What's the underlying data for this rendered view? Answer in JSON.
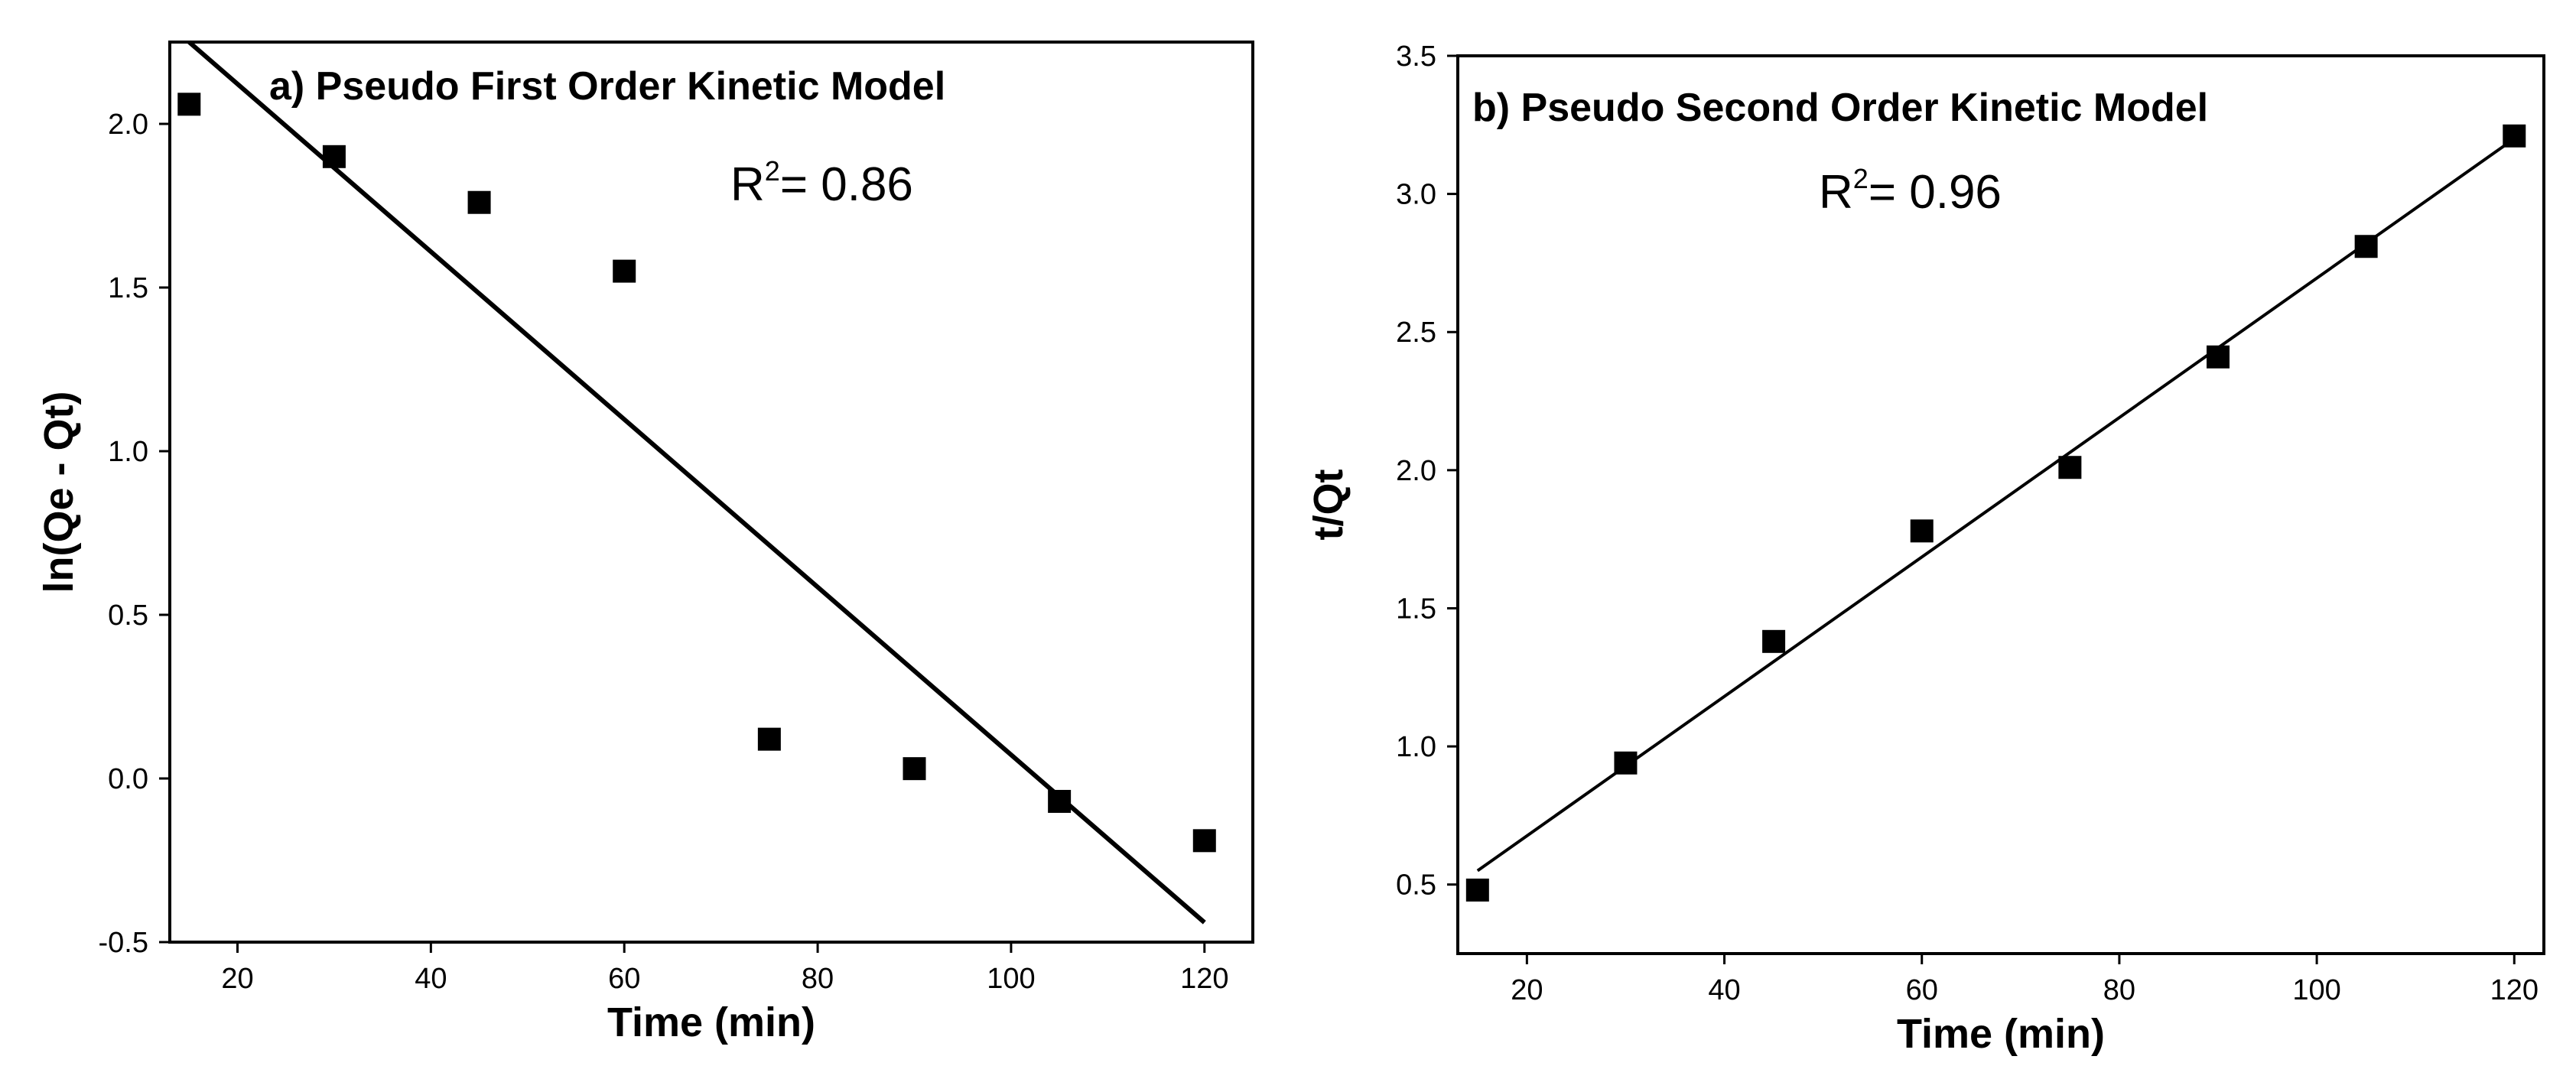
{
  "chart_data": [
    {
      "type": "scatter",
      "panel": "a",
      "title": "a) Pseudo First Order Kinetic Model",
      "annotation": {
        "r2_prefix": "R",
        "r2_sup": "2",
        "r2_text": "= 0.86"
      },
      "xlabel": "Time (min)",
      "ylabel": "ln(Qe - Qt)",
      "xlim": [
        13,
        125
      ],
      "ylim": [
        -0.5,
        2.25
      ],
      "xticks": [
        20,
        40,
        60,
        80,
        100,
        120
      ],
      "xtick_labels": [
        "20",
        "40",
        "60",
        "80",
        "100",
        "120"
      ],
      "yticks": [
        -0.5,
        0.0,
        0.5,
        1.0,
        1.5,
        2.0
      ],
      "ytick_labels": [
        "-0.5",
        "0.0",
        "0.5",
        "1.0",
        "1.5",
        "2.0"
      ],
      "series": [
        {
          "name": "data",
          "x": [
            15,
            30,
            45,
            60,
            75,
            90,
            105,
            120
          ],
          "y": [
            2.06,
            1.9,
            1.76,
            1.55,
            0.12,
            0.03,
            -0.07,
            -0.19
          ]
        }
      ],
      "fit_line": {
        "x": [
          15,
          120
        ],
        "y": [
          2.25,
          -0.44
        ]
      }
    },
    {
      "type": "scatter",
      "panel": "b",
      "title": "b) Pseudo Second Order Kinetic Model",
      "annotation": {
        "r2_prefix": "R",
        "r2_sup": "2",
        "r2_text": "= 0.96"
      },
      "xlabel": "Time (min)",
      "ylabel": "t/Qt",
      "xlim": [
        13,
        123
      ],
      "ylim": [
        0.25,
        3.5
      ],
      "xticks": [
        20,
        40,
        60,
        80,
        100,
        120
      ],
      "xtick_labels": [
        "20",
        "40",
        "60",
        "80",
        "100",
        "120"
      ],
      "yticks": [
        0.5,
        1.0,
        1.5,
        2.0,
        2.5,
        3.0,
        3.5
      ],
      "ytick_labels": [
        "0.5",
        "1.0",
        "1.5",
        "2.0",
        "2.5",
        "3.0",
        "3.5"
      ],
      "series": [
        {
          "name": "data",
          "x": [
            15,
            30,
            45,
            60,
            75,
            90,
            105,
            120
          ],
          "y": [
            0.48,
            0.94,
            1.38,
            1.78,
            2.01,
            2.41,
            2.81,
            3.21
          ]
        }
      ],
      "fit_line": {
        "x": [
          15,
          120
        ],
        "y": [
          0.55,
          3.2
        ]
      }
    }
  ]
}
